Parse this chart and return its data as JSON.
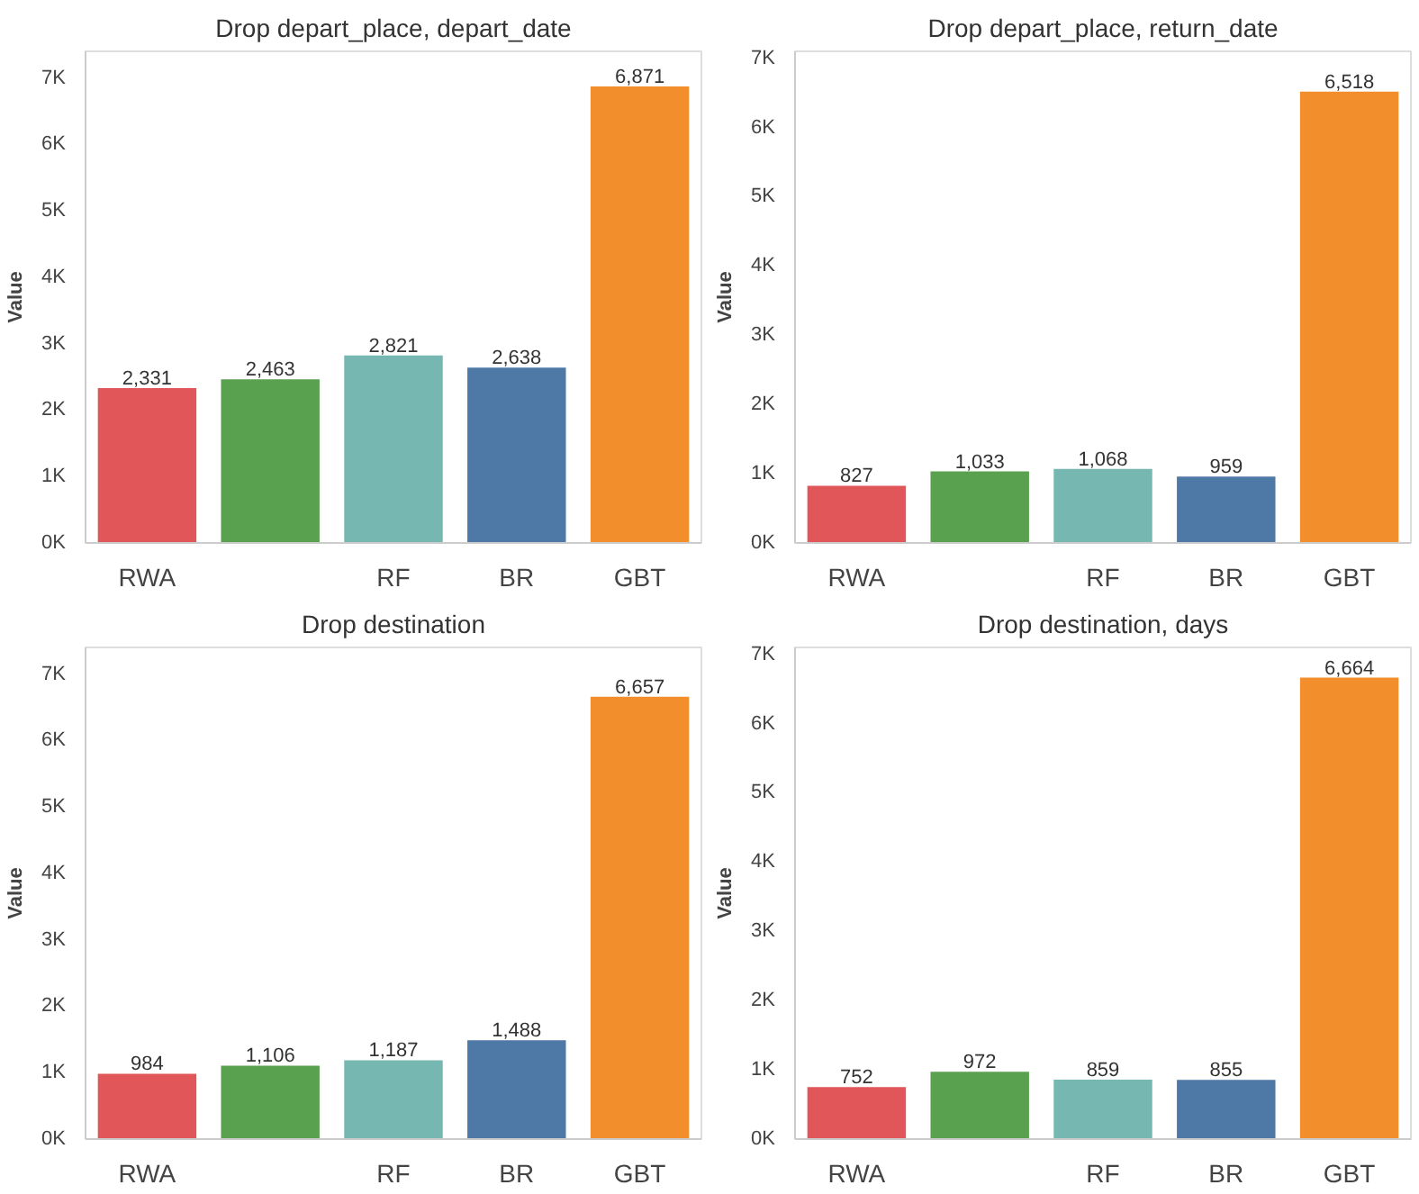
{
  "chart_data": [
    {
      "type": "bar",
      "title": "Drop depart_place, depart_date",
      "ylabel": "Value",
      "categories": [
        "RWA",
        null,
        "RF",
        "BR",
        "GBT"
      ],
      "values": [
        2331,
        2463,
        2821,
        2638,
        6871
      ],
      "colors": [
        "#e15759",
        "#59a14f",
        "#76b7b2",
        "#4e79a7",
        "#f28e2b"
      ],
      "ylim": [
        0,
        7400
      ],
      "yticks": [
        {
          "value": 0,
          "label": "0K"
        },
        {
          "value": 1000,
          "label": "1K"
        },
        {
          "value": 2000,
          "label": "2K"
        },
        {
          "value": 3000,
          "label": "3K"
        },
        {
          "value": 4000,
          "label": "4K"
        },
        {
          "value": 5000,
          "label": "5K"
        },
        {
          "value": 6000,
          "label": "6K"
        },
        {
          "value": 7000,
          "label": "7K"
        }
      ],
      "value_labels": [
        "2,331",
        "2,463",
        "2,821",
        "2,638",
        "6,871"
      ],
      "grid": false
    },
    {
      "type": "bar",
      "title": "Drop depart_place, return_date",
      "ylabel": "Value",
      "categories": [
        "RWA",
        null,
        "RF",
        "BR",
        "GBT"
      ],
      "values": [
        827,
        1033,
        1068,
        959,
        6518
      ],
      "colors": [
        "#e15759",
        "#59a14f",
        "#76b7b2",
        "#4e79a7",
        "#f28e2b"
      ],
      "ylim": [
        0,
        7100
      ],
      "yticks": [
        {
          "value": 0,
          "label": "0K"
        },
        {
          "value": 1000,
          "label": "1K"
        },
        {
          "value": 2000,
          "label": "2K"
        },
        {
          "value": 3000,
          "label": "3K"
        },
        {
          "value": 4000,
          "label": "4K"
        },
        {
          "value": 5000,
          "label": "5K"
        },
        {
          "value": 6000,
          "label": "6K"
        },
        {
          "value": 7000,
          "label": "7K"
        }
      ],
      "value_labels": [
        "827",
        "1,033",
        "1,068",
        "959",
        "6,518"
      ],
      "grid": false
    },
    {
      "type": "bar",
      "title": "Drop destination",
      "ylabel": "Value",
      "categories": [
        "RWA",
        null,
        "RF",
        "BR",
        "GBT"
      ],
      "values": [
        984,
        1106,
        1187,
        1488,
        6657
      ],
      "colors": [
        "#e15759",
        "#59a14f",
        "#76b7b2",
        "#4e79a7",
        "#f28e2b"
      ],
      "ylim": [
        0,
        7400
      ],
      "yticks": [
        {
          "value": 0,
          "label": "0K"
        },
        {
          "value": 1000,
          "label": "1K"
        },
        {
          "value": 2000,
          "label": "2K"
        },
        {
          "value": 3000,
          "label": "3K"
        },
        {
          "value": 4000,
          "label": "4K"
        },
        {
          "value": 5000,
          "label": "5K"
        },
        {
          "value": 6000,
          "label": "6K"
        },
        {
          "value": 7000,
          "label": "7K"
        }
      ],
      "value_labels": [
        "984",
        "1,106",
        "1,187",
        "1,488",
        "6,657"
      ],
      "grid": false
    },
    {
      "type": "bar",
      "title": "Drop destination, days",
      "ylabel": "Value",
      "categories": [
        "RWA",
        null,
        "RF",
        "BR",
        "GBT"
      ],
      "values": [
        752,
        972,
        859,
        855,
        6664
      ],
      "colors": [
        "#e15759",
        "#59a14f",
        "#76b7b2",
        "#4e79a7",
        "#f28e2b"
      ],
      "ylim": [
        0,
        7100
      ],
      "yticks": [
        {
          "value": 0,
          "label": "0K"
        },
        {
          "value": 1000,
          "label": "1K"
        },
        {
          "value": 2000,
          "label": "2K"
        },
        {
          "value": 3000,
          "label": "3K"
        },
        {
          "value": 4000,
          "label": "4K"
        },
        {
          "value": 5000,
          "label": "5K"
        },
        {
          "value": 6000,
          "label": "6K"
        },
        {
          "value": 7000,
          "label": "7K"
        }
      ],
      "value_labels": [
        "752",
        "972",
        "859",
        "855",
        "6,664"
      ],
      "grid": false
    }
  ]
}
